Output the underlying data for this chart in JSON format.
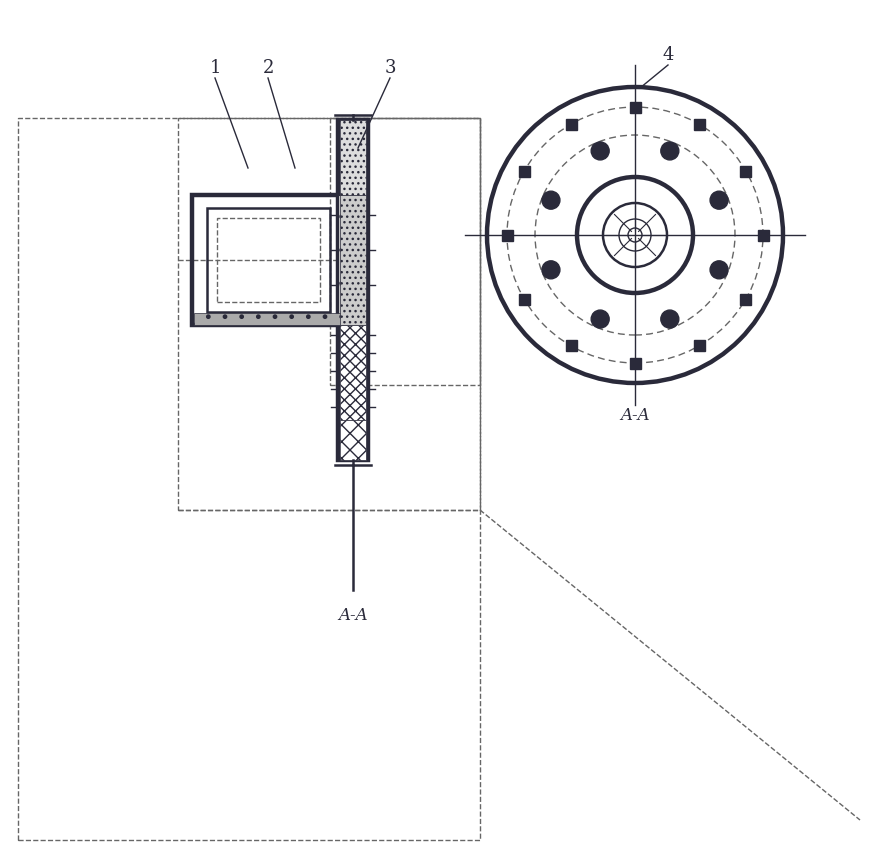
{
  "bg_color": "#ffffff",
  "lc": "#2a2a3a",
  "dc": "#666666",
  "figsize": [
    8.74,
    8.65
  ],
  "dpi": 100
}
